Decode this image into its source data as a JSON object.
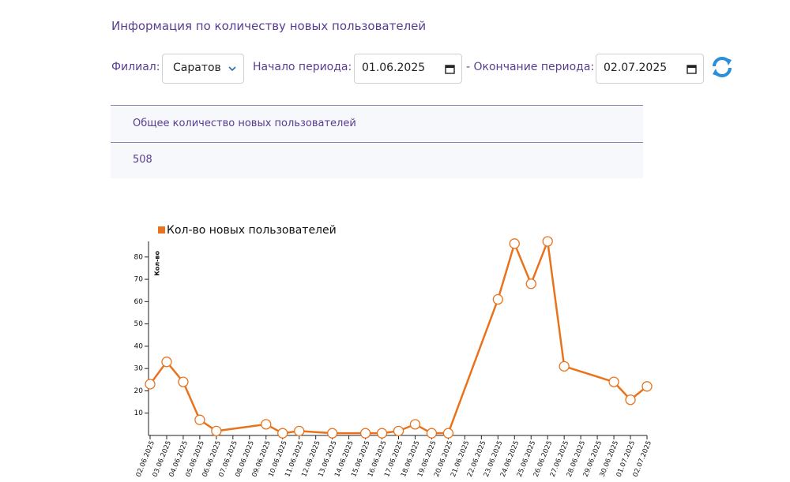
{
  "header": {
    "title": "Информация по количеству новых пользователей"
  },
  "filters": {
    "branch_label": "Филиал:",
    "branch_value": "Саратов",
    "start_label": "Начало периода:",
    "start_value": "01.06.2025",
    "end_label": "- Окончание периода:",
    "end_value": "02.07.2025"
  },
  "table": {
    "header": "Общее количество новых пользователей",
    "rows": [
      [
        "508"
      ]
    ]
  },
  "chart_data": {
    "type": "line",
    "ylabel": "Кол-во",
    "x": [
      "02.06.2025",
      "03.06.2025",
      "04.06.2025",
      "05.06.2025",
      "06.06.2025",
      "09.06.2025",
      "10.06.2025",
      "11.06.2025",
      "13.06.2025",
      "15.06.2025",
      "16.06.2025",
      "17.06.2025",
      "18.06.2025",
      "19.06.2025",
      "20.06.2025",
      "23.06.2025",
      "24.06.2025",
      "25.06.2025",
      "26.06.2025",
      "27.06.2025",
      "30.06.2025",
      "01.07.2025",
      "02.07.2025"
    ],
    "series": [
      {
        "name": "Кол-во новых пользователей",
        "color": "#e8731c",
        "values": [
          23,
          33,
          24,
          7,
          2,
          5,
          1,
          2,
          1,
          1,
          1,
          2,
          5,
          1,
          1,
          61,
          86,
          68,
          87,
          31,
          24,
          16,
          22
        ]
      }
    ],
    "xlim": [
      "02.06.2025",
      "02.07.2025"
    ],
    "xticks": [
      "02.06.2025",
      "03.06.2025",
      "04.06.2025",
      "05.06.2025",
      "06.06.2025",
      "07.06.2025",
      "08.06.2025",
      "09.06.2025",
      "10.06.2025",
      "11.06.2025",
      "12.06.2025",
      "13.06.2025",
      "14.06.2025",
      "15.06.2025",
      "16.06.2025",
      "17.06.2025",
      "18.06.2025",
      "19.06.2025",
      "20.06.2025",
      "21.06.2025",
      "22.06.2025",
      "23.06.2025",
      "24.06.2025",
      "25.06.2025",
      "26.06.2025",
      "27.06.2025",
      "28.06.2025",
      "29.06.2025",
      "30.06.2025",
      "01.07.2025",
      "02.07.2025"
    ],
    "ylim": [
      0,
      87
    ],
    "yticks": [
      10,
      20,
      30,
      40,
      50,
      60,
      70,
      80
    ],
    "legend": "top-left"
  }
}
